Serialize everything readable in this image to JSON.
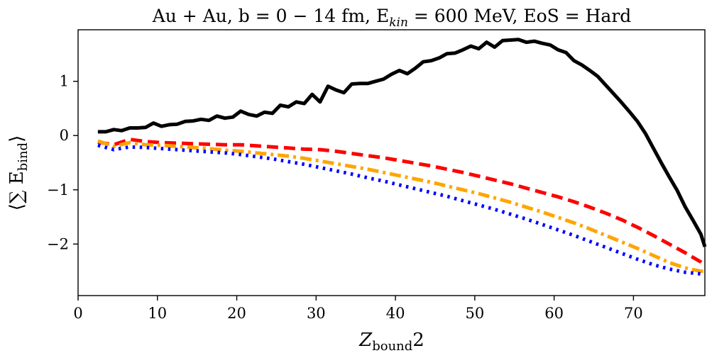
{
  "chart_data": {
    "type": "line",
    "title": "Au + Au, b = 0 − 14 fm, E",
    "title_sub": "kin",
    "title_tail": " = 600 MeV, EoS = Hard",
    "xlabel_main": "Z",
    "xlabel_sub": "bound",
    "xlabel_tail": "2",
    "ylabel_main": "⟨∑ E",
    "ylabel_sub": "bind",
    "ylabel_tail": "⟩",
    "xlim": [
      0,
      79
    ],
    "ylim": [
      -2.95,
      1.95
    ],
    "xticks": [
      0,
      10,
      20,
      30,
      40,
      50,
      60,
      70
    ],
    "xtick_labels": [
      "0",
      "10",
      "20",
      "30",
      "40",
      "50",
      "60",
      "70"
    ],
    "yticks": [
      1,
      0,
      -1,
      -2
    ],
    "ytick_labels": [
      "1",
      "0",
      "−1",
      "−2"
    ],
    "series": [
      {
        "name": "black-solid",
        "color": "#000000",
        "dash": "solid",
        "x": [
          2.5,
          3.5,
          4.5,
          5.5,
          6.5,
          7.5,
          8.5,
          9.5,
          10.5,
          11.5,
          12.5,
          13.5,
          14.5,
          15.5,
          16.5,
          17.5,
          18.5,
          19.5,
          20.5,
          21.5,
          22.5,
          23.5,
          24.5,
          25.5,
          26.5,
          27.5,
          28.5,
          29.5,
          30.5,
          31.5,
          32.5,
          33.5,
          34.5,
          35.5,
          36.5,
          37.5,
          38.5,
          39.5,
          40.5,
          41.5,
          42.5,
          43.5,
          44.5,
          45.5,
          46.5,
          47.5,
          48.5,
          49.5,
          50.5,
          51.5,
          52.5,
          53.5,
          54.5,
          55.5,
          56.5,
          57.5,
          58.5,
          59.5,
          60.5,
          61.5,
          62.5,
          63.5,
          64.5,
          65.5,
          66.5,
          67.5,
          68.5,
          69.5,
          70.5,
          71.5,
          72.5,
          73.5,
          74.5,
          75.5,
          76.5,
          77.5,
          78.5,
          79
        ],
        "values": [
          0.07,
          0.07,
          0.11,
          0.09,
          0.14,
          0.14,
          0.15,
          0.23,
          0.17,
          0.2,
          0.21,
          0.26,
          0.27,
          0.3,
          0.28,
          0.36,
          0.32,
          0.34,
          0.45,
          0.39,
          0.36,
          0.43,
          0.41,
          0.56,
          0.53,
          0.62,
          0.59,
          0.76,
          0.62,
          0.91,
          0.84,
          0.79,
          0.95,
          0.96,
          0.96,
          1.0,
          1.04,
          1.13,
          1.2,
          1.14,
          1.24,
          1.36,
          1.38,
          1.43,
          1.51,
          1.52,
          1.58,
          1.65,
          1.6,
          1.72,
          1.63,
          1.75,
          1.76,
          1.77,
          1.72,
          1.74,
          1.7,
          1.67,
          1.58,
          1.53,
          1.38,
          1.3,
          1.2,
          1.09,
          0.93,
          0.77,
          0.61,
          0.44,
          0.26,
          0.04,
          -0.23,
          -0.5,
          -0.76,
          -1.01,
          -1.31,
          -1.56,
          -1.82,
          -2.05
        ]
      },
      {
        "name": "red-dashed",
        "color": "#ff0000",
        "dash": "dashed",
        "x": [
          2.5,
          4.5,
          6.5,
          8.5,
          10.5,
          12.5,
          14.5,
          16.5,
          18.5,
          20.5,
          22.5,
          24.5,
          26.5,
          28.5,
          30.5,
          32.5,
          34.5,
          36.5,
          38.5,
          40.5,
          42.5,
          44.5,
          46.5,
          48.5,
          50.5,
          52.5,
          54.5,
          56.5,
          58.5,
          60.5,
          62.5,
          64.5,
          66.5,
          68.5,
          70.5,
          72.5,
          74.5,
          76.5,
          78.5,
          79
        ],
        "values": [
          -0.12,
          -0.17,
          -0.07,
          -0.11,
          -0.13,
          -0.14,
          -0.15,
          -0.16,
          -0.17,
          -0.17,
          -0.19,
          -0.21,
          -0.23,
          -0.25,
          -0.26,
          -0.29,
          -0.33,
          -0.37,
          -0.41,
          -0.46,
          -0.51,
          -0.56,
          -0.62,
          -0.68,
          -0.75,
          -0.82,
          -0.89,
          -0.97,
          -1.05,
          -1.13,
          -1.22,
          -1.32,
          -1.43,
          -1.55,
          -1.69,
          -1.84,
          -2.0,
          -2.16,
          -2.33,
          -2.4
        ]
      },
      {
        "name": "orange-dashdot",
        "color": "#ffa500",
        "dash": "dashdot",
        "x": [
          2.5,
          4.5,
          6.5,
          8.5,
          10.5,
          12.5,
          14.5,
          16.5,
          18.5,
          20.5,
          22.5,
          24.5,
          26.5,
          28.5,
          30.5,
          32.5,
          34.5,
          36.5,
          38.5,
          40.5,
          42.5,
          44.5,
          46.5,
          48.5,
          50.5,
          52.5,
          54.5,
          56.5,
          58.5,
          60.5,
          62.5,
          64.5,
          66.5,
          68.5,
          70.5,
          72.5,
          74.5,
          76.5,
          78.5,
          79
        ],
        "values": [
          -0.1,
          -0.2,
          -0.13,
          -0.17,
          -0.18,
          -0.2,
          -0.22,
          -0.24,
          -0.27,
          -0.29,
          -0.32,
          -0.35,
          -0.38,
          -0.42,
          -0.47,
          -0.52,
          -0.57,
          -0.62,
          -0.68,
          -0.74,
          -0.8,
          -0.86,
          -0.93,
          -1.0,
          -1.07,
          -1.15,
          -1.23,
          -1.32,
          -1.41,
          -1.51,
          -1.61,
          -1.72,
          -1.84,
          -1.96,
          -2.08,
          -2.21,
          -2.34,
          -2.44,
          -2.5,
          -2.5
        ]
      },
      {
        "name": "blue-dotted",
        "color": "#0000ff",
        "dash": "dotted",
        "x": [
          2.5,
          4.5,
          6.5,
          8.5,
          10.5,
          12.5,
          14.5,
          16.5,
          18.5,
          20.5,
          22.5,
          24.5,
          26.5,
          28.5,
          30.5,
          32.5,
          34.5,
          36.5,
          38.5,
          40.5,
          42.5,
          44.5,
          46.5,
          48.5,
          50.5,
          52.5,
          54.5,
          56.5,
          58.5,
          60.5,
          62.5,
          64.5,
          66.5,
          68.5,
          70.5,
          72.5,
          74.5,
          76.5,
          78.5,
          79
        ],
        "values": [
          -0.18,
          -0.26,
          -0.21,
          -0.22,
          -0.24,
          -0.26,
          -0.28,
          -0.3,
          -0.32,
          -0.35,
          -0.39,
          -0.43,
          -0.48,
          -0.53,
          -0.59,
          -0.65,
          -0.71,
          -0.78,
          -0.84,
          -0.91,
          -0.98,
          -1.05,
          -1.12,
          -1.2,
          -1.28,
          -1.36,
          -1.45,
          -1.54,
          -1.64,
          -1.74,
          -1.84,
          -1.95,
          -2.06,
          -2.17,
          -2.28,
          -2.38,
          -2.46,
          -2.52,
          -2.55,
          -2.55
        ]
      }
    ]
  }
}
